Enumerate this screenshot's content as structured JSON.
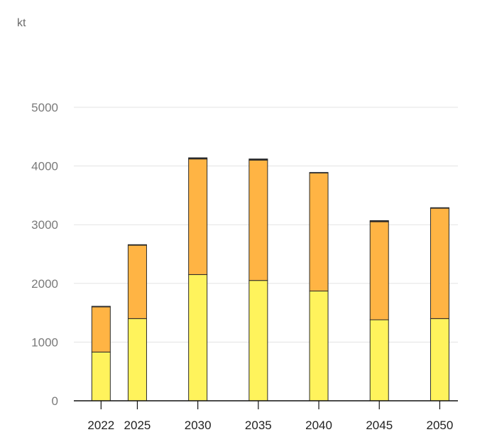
{
  "chart_data": {
    "type": "bar",
    "stacked": true,
    "unit": "kt",
    "categories": [
      "2022",
      "2025",
      "2030",
      "2035",
      "2040",
      "2045",
      "2050"
    ],
    "x_numeric": [
      2022,
      2025,
      2030,
      2035,
      2040,
      2045,
      2050
    ],
    "series": [
      {
        "values": [
          830,
          1400,
          2150,
          2050,
          1870,
          1380,
          1400
        ],
        "color": "#fff35c"
      },
      {
        "values": [
          770,
          1250,
          1970,
          2050,
          2010,
          1670,
          1880
        ],
        "color": "#ffb444"
      },
      {
        "values": [
          10,
          10,
          20,
          20,
          10,
          20,
          10
        ],
        "color": "#2a2a2a"
      }
    ],
    "y_ticks": [
      0,
      1000,
      2000,
      3000,
      4000,
      5000
    ],
    "ylim": [
      0,
      5000
    ],
    "grid": true,
    "legend": "none"
  }
}
